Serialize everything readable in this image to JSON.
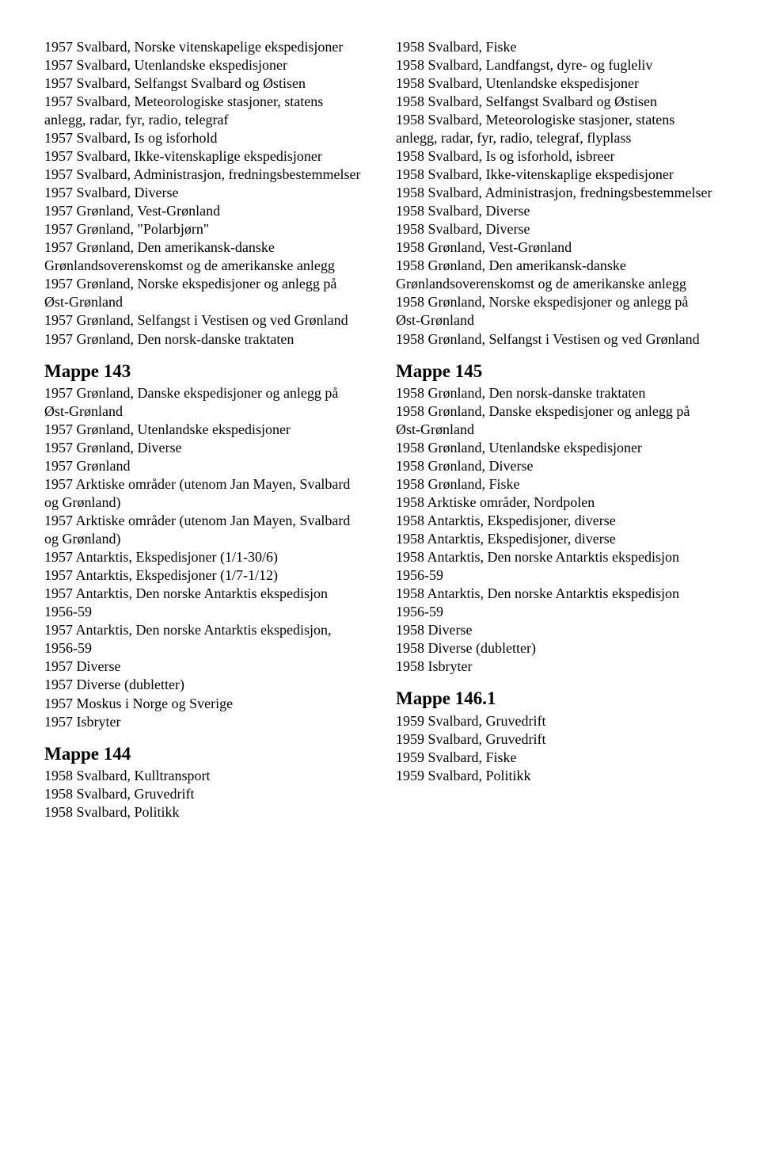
{
  "left": {
    "block1": [
      "1957 Svalbard, Norske vitenskapelige ekspedisjoner",
      "1957 Svalbard, Utenlandske ekspedisjoner",
      "1957 Svalbard, Selfangst Svalbard og Østisen",
      "1957 Svalbard, Meteorologiske stasjoner, statens anlegg, radar, fyr, radio, telegraf",
      "1957 Svalbard, Is og isforhold",
      "1957 Svalbard, Ikke-vitenskaplige ekspedisjoner",
      "1957 Svalbard, Administrasjon, fredningsbestemmelser",
      "1957 Svalbard, Diverse",
      "1957 Grønland, Vest-Grønland",
      "1957 Grønland, \"Polarbjørn\"",
      "1957 Grønland, Den amerikansk-danske Grønlandsoverenskomst og de amerikanske anlegg",
      "1957 Grønland, Norske ekspedisjoner og anlegg på Øst-Grønland",
      "1957 Grønland, Selfangst i Vestisen og ved Grønland",
      "1957 Grønland, Den norsk-danske traktaten"
    ],
    "heading2": "Mappe 143",
    "block2": [
      "1957 Grønland, Danske ekspedisjoner og anlegg på Øst-Grønland",
      "1957 Grønland, Utenlandske ekspedisjoner",
      "1957 Grønland, Diverse",
      "1957 Grønland",
      "1957 Arktiske områder (utenom Jan Mayen, Svalbard og Grønland)",
      "1957 Arktiske områder (utenom Jan Mayen, Svalbard og Grønland)",
      "1957 Antarktis, Ekspedisjoner (1/1-30/6)",
      "1957 Antarktis, Ekspedisjoner (1/7-1/12)",
      "1957 Antarktis, Den norske Antarktis ekspedisjon 1956-59",
      "1957 Antarktis, Den norske Antarktis ekspedisjon, 1956-59",
      "1957 Diverse",
      "1957 Diverse (dubletter)",
      "1957 Moskus i Norge og Sverige",
      "1957 Isbryter"
    ],
    "heading3": "Mappe 144",
    "block3": [
      "1958 Svalbard, Kulltransport",
      "1958 Svalbard, Gruvedrift",
      "1958 Svalbard, Politikk"
    ]
  },
  "right": {
    "block1": [
      "1958 Svalbard, Fiske",
      "1958 Svalbard, Landfangst, dyre- og fugleliv",
      "1958 Svalbard, Utenlandske ekspedisjoner",
      "1958 Svalbard, Selfangst Svalbard og Østisen",
      "1958 Svalbard, Meteorologiske stasjoner, statens anlegg, radar, fyr, radio, telegraf, flyplass",
      "1958 Svalbard, Is og isforhold, isbreer",
      "1958 Svalbard, Ikke-vitenskaplige ekspedisjoner",
      "1958 Svalbard, Administrasjon, fredningsbestemmelser",
      "1958 Svalbard, Diverse",
      "1958 Svalbard, Diverse",
      "1958 Grønland, Vest-Grønland",
      "1958 Grønland, Den amerikansk-danske Grønlandsoverenskomst og de amerikanske anlegg",
      "1958 Grønland, Norske ekspedisjoner og anlegg på Øst-Grønland",
      "1958 Grønland, Selfangst i Vestisen og ved Grønland"
    ],
    "heading2": "Mappe 145",
    "block2": [
      "1958 Grønland, Den norsk-danske traktaten",
      "1958 Grønland, Danske ekspedisjoner og anlegg på Øst-Grønland",
      "1958 Grønland, Utenlandske ekspedisjoner",
      "1958 Grønland, Diverse",
      "1958 Grønland, Fiske",
      "1958 Arktiske områder, Nordpolen",
      "1958 Antarktis, Ekspedisjoner, diverse",
      "1958 Antarktis, Ekspedisjoner, diverse",
      "1958 Antarktis, Den norske Antarktis ekspedisjon 1956-59",
      "1958 Antarktis, Den norske Antarktis ekspedisjon 1956-59",
      "1958 Diverse",
      "1958 Diverse (dubletter)",
      "1958 Isbryter"
    ],
    "heading3": "Mappe 146.1",
    "block3": [
      "1959 Svalbard, Gruvedrift",
      "1959 Svalbard, Gruvedrift",
      "1959 Svalbard, Fiske",
      "1959 Svalbard, Politikk"
    ]
  }
}
